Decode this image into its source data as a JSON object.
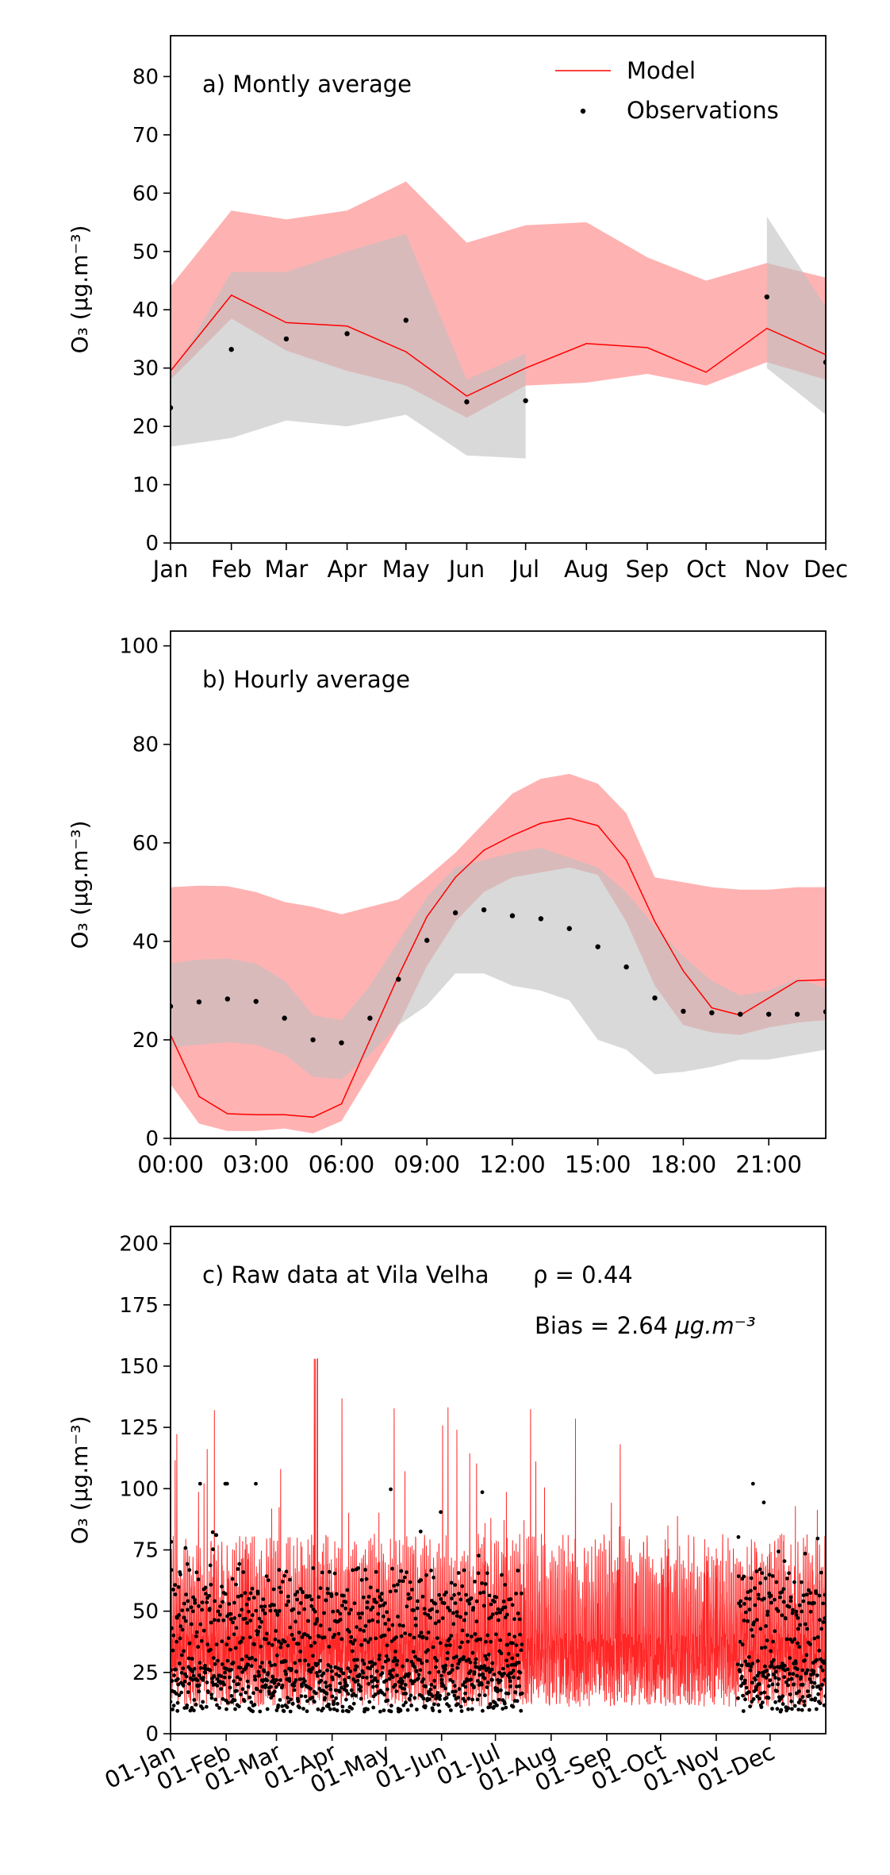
{
  "chart_data": [
    {
      "type": "line",
      "panel_label": "a) Montly average",
      "ylabel": "O₃ (μg.m⁻³)",
      "ylim": [
        0,
        87
      ],
      "yticks": [
        0,
        10,
        20,
        30,
        40,
        50,
        60,
        70,
        80
      ],
      "categories": [
        "Jan",
        "Feb",
        "Mar",
        "Apr",
        "May",
        "Jun",
        "Jul",
        "Aug",
        "Sep",
        "Oct",
        "Nov",
        "Dec"
      ],
      "x_days": [
        0,
        31,
        59,
        90,
        120,
        151,
        181,
        212,
        243,
        273,
        304,
        334
      ],
      "legend": {
        "position": "top-right",
        "model_label": "Model",
        "obs_label": "Observations"
      },
      "series": [
        {
          "name": "Model",
          "kind": "line",
          "color": "#ff0000",
          "values": [
            29.5,
            42.5,
            37.8,
            37.2,
            32.8,
            25.2,
            30.0,
            34.2,
            33.5,
            29.3,
            36.8,
            32.3
          ]
        },
        {
          "name": "Model range",
          "kind": "band",
          "color": "#ff7f7f",
          "upper": [
            44,
            57,
            55.5,
            57,
            62,
            51.5,
            54.5,
            55,
            49,
            45,
            48,
            45.5
          ],
          "lower": [
            28,
            38.5,
            33,
            29.5,
            27,
            21.5,
            27,
            27.5,
            29,
            27,
            31,
            28
          ]
        },
        {
          "name": "Observations",
          "kind": "points",
          "color": "#000000",
          "values": [
            23.2,
            33.2,
            35.0,
            35.9,
            38.2,
            24.2,
            24.4,
            null,
            null,
            null,
            42.2,
            31.0
          ]
        },
        {
          "name": "Observation range",
          "kind": "band",
          "color": "#c0c0c0",
          "segments": [
            {
              "from": 0,
              "to": 6,
              "upper": [
                28.5,
                46.5,
                46.5,
                50,
                53,
                28,
                32.5
              ],
              "lower": [
                16.5,
                18,
                21,
                20,
                22,
                15,
                14.5
              ]
            },
            {
              "from": 10,
              "to": 11,
              "upper": [
                56,
                40.5
              ],
              "lower": [
                30,
                22
              ]
            }
          ]
        }
      ]
    },
    {
      "type": "line",
      "panel_label": "b) Hourly average",
      "ylabel": "O₃ (μg.m⁻³)",
      "ylim": [
        0,
        103
      ],
      "yticks": [
        0,
        20,
        40,
        60,
        80,
        100
      ],
      "x_hours": [
        0,
        1,
        2,
        3,
        4,
        5,
        6,
        7,
        8,
        9,
        10,
        11,
        12,
        13,
        14,
        15,
        16,
        17,
        18,
        19,
        20,
        21,
        22,
        23
      ],
      "xtick_labels": [
        "00:00",
        "03:00",
        "06:00",
        "09:00",
        "12:00",
        "15:00",
        "18:00",
        "21:00"
      ],
      "series": [
        {
          "name": "Model",
          "kind": "line",
          "color": "#ff0000",
          "values": [
            21,
            8.5,
            5,
            4.8,
            4.8,
            4.3,
            7,
            20,
            33,
            45,
            53,
            58.5,
            61.5,
            64,
            65,
            63.5,
            56.5,
            44,
            34,
            26.5,
            25,
            28.5,
            32,
            32.2
          ]
        },
        {
          "name": "Model range",
          "kind": "band",
          "color": "#ff7f7f",
          "upper": [
            51,
            51.3,
            51.2,
            50,
            48,
            47,
            45.5,
            47,
            48.5,
            53,
            58,
            64,
            70,
            73,
            74,
            72,
            66,
            53,
            52,
            51,
            50.5,
            50.5,
            51,
            51
          ],
          "lower": [
            11,
            3,
            1.5,
            1.5,
            2,
            1,
            3.5,
            13,
            23,
            35,
            44,
            50,
            53,
            54,
            55,
            53.5,
            44,
            31,
            23,
            21.5,
            21,
            22.5,
            23.5,
            24
          ]
        },
        {
          "name": "Observations",
          "kind": "points",
          "color": "#000000",
          "values": [
            26.8,
            27.7,
            28.3,
            27.8,
            24.4,
            20,
            19.4,
            24.4,
            32.3,
            40.2,
            45.8,
            46.4,
            45.2,
            44.6,
            42.6,
            38.9,
            34.8,
            28.5,
            25.8,
            25.5,
            25.2,
            25.2,
            25.2,
            25.7
          ]
        },
        {
          "name": "Observation range",
          "kind": "band",
          "color": "#c0c0c0",
          "upper": [
            35.5,
            36.3,
            36.5,
            35.5,
            32,
            25,
            24,
            31,
            40,
            49,
            55,
            56.5,
            58,
            59,
            57,
            55,
            50,
            43,
            37,
            32,
            29,
            30,
            32.5,
            30.5
          ],
          "lower": [
            18.5,
            19,
            19.5,
            19,
            17,
            12.5,
            12,
            17,
            23,
            27,
            33.5,
            33.5,
            31,
            30,
            28,
            20,
            18,
            13,
            13.5,
            14.5,
            16,
            16,
            17,
            18
          ]
        }
      ]
    },
    {
      "type": "line",
      "panel_label": "c) Raw data at Vila Velha",
      "overlap_text": "ρ = 0.44",
      "bias_text": "Bias = 2.64",
      "bias_unit": "μg.m⁻³",
      "ylabel": "O₃ (μg.m⁻³)",
      "ylim": [
        0,
        207
      ],
      "yticks": [
        0,
        25,
        50,
        75,
        100,
        125,
        150,
        175,
        200
      ],
      "xtick_labels": [
        "01-Jan",
        "01-Feb",
        "01-Mar",
        "01-Apr",
        "01-May",
        "01-Jun",
        "01-Jul",
        "01-Aug",
        "01-Sep",
        "01-Oct",
        "01-Nov",
        "01-Dec"
      ],
      "xtick_days": [
        0,
        31,
        59,
        90,
        120,
        151,
        181,
        212,
        243,
        273,
        304,
        334
      ],
      "x_range_days": [
        0,
        365
      ],
      "series": [
        {
          "name": "Model",
          "kind": "hourly line",
          "color": "#ff0000",
          "typical_range": [
            5,
            75
          ],
          "max_value": 153
        },
        {
          "name": "Observations",
          "kind": "hourly points",
          "color": "#000000",
          "periods": [
            {
              "from": "01-Jan",
              "to": "mid-Jul"
            },
            {
              "from": "mid-Nov",
              "to": "31-Dec"
            }
          ],
          "typical_range": [
            5,
            60
          ],
          "max_value": 102
        }
      ]
    }
  ]
}
